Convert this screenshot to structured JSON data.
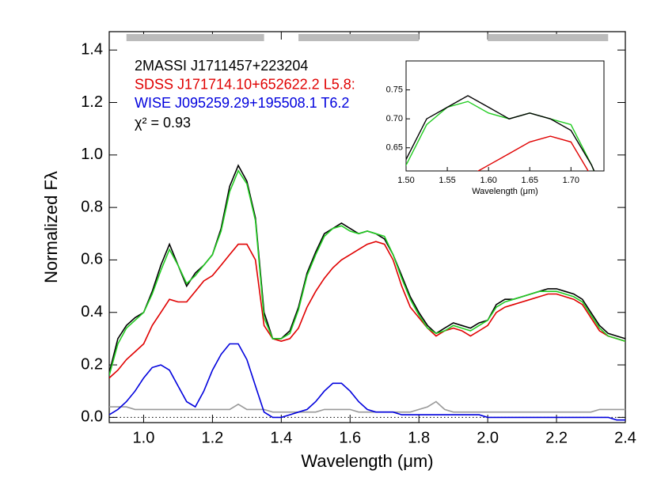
{
  "chart_data": {
    "type": "line",
    "xlabel": "Wavelength (μm)",
    "ylabel": "Normalized Fλ",
    "annotation": "χ² = 0.93",
    "xlim": [
      0.9,
      2.4
    ],
    "ylim": [
      -0.02,
      1.47
    ],
    "xticks": [
      {
        "value": 1.0,
        "label": "1.0"
      },
      {
        "value": 1.2,
        "label": "1.2"
      },
      1.4,
      1.6,
      1.8,
      {
        "value": 2.0,
        "label": "2.0"
      },
      2.2,
      2.4
    ],
    "yticks": [
      {
        "value": 0.0,
        "label": "0.0"
      },
      0.2,
      0.4,
      0.6,
      0.8,
      {
        "value": 1.0,
        "label": "1.0"
      },
      1.2,
      1.4
    ],
    "reference_line": 0,
    "bands": [
      [
        0.95,
        1.35
      ],
      [
        1.45,
        1.8
      ],
      [
        2.0,
        2.35
      ]
    ],
    "x": [
      0.9,
      0.925,
      0.95,
      0.975,
      1.0,
      1.025,
      1.05,
      1.075,
      1.1,
      1.125,
      1.15,
      1.175,
      1.2,
      1.225,
      1.25,
      1.275,
      1.3,
      1.325,
      1.35,
      1.375,
      1.4,
      1.425,
      1.45,
      1.475,
      1.5,
      1.525,
      1.55,
      1.575,
      1.6,
      1.625,
      1.65,
      1.675,
      1.7,
      1.725,
      1.75,
      1.775,
      1.8,
      1.825,
      1.85,
      1.875,
      1.9,
      1.925,
      1.95,
      1.975,
      2.0,
      2.025,
      2.05,
      2.075,
      2.1,
      2.125,
      2.15,
      2.175,
      2.2,
      2.225,
      2.25,
      2.275,
      2.3,
      2.325,
      2.35,
      2.375,
      2.4
    ],
    "series": [
      {
        "name": "2MASSI J1711457+223204",
        "color": "#000000",
        "values": [
          0.17,
          0.3,
          0.35,
          0.38,
          0.4,
          0.48,
          0.58,
          0.66,
          0.58,
          0.5,
          0.55,
          0.58,
          0.62,
          0.72,
          0.88,
          0.96,
          0.9,
          0.76,
          0.4,
          0.3,
          0.3,
          0.33,
          0.42,
          0.55,
          0.63,
          0.7,
          0.72,
          0.74,
          0.72,
          0.7,
          0.71,
          0.7,
          0.68,
          0.62,
          0.54,
          0.46,
          0.4,
          0.35,
          0.32,
          0.34,
          0.36,
          0.35,
          0.34,
          0.36,
          0.37,
          0.43,
          0.45,
          0.45,
          0.46,
          0.47,
          0.48,
          0.49,
          0.49,
          0.48,
          0.47,
          0.45,
          0.4,
          0.35,
          0.32,
          0.31,
          0.3
        ]
      },
      {
        "name": "SDSS J171714.10+652622.2 L5.8:",
        "color": "#e00000",
        "values": [
          0.15,
          0.18,
          0.22,
          0.25,
          0.28,
          0.35,
          0.4,
          0.45,
          0.44,
          0.44,
          0.48,
          0.52,
          0.54,
          0.58,
          0.62,
          0.66,
          0.66,
          0.6,
          0.35,
          0.3,
          0.29,
          0.3,
          0.34,
          0.42,
          0.48,
          0.53,
          0.57,
          0.6,
          0.62,
          0.64,
          0.66,
          0.67,
          0.66,
          0.6,
          0.5,
          0.42,
          0.38,
          0.34,
          0.31,
          0.33,
          0.34,
          0.33,
          0.31,
          0.33,
          0.35,
          0.4,
          0.42,
          0.43,
          0.44,
          0.45,
          0.46,
          0.47,
          0.47,
          0.46,
          0.45,
          0.43,
          0.38,
          0.33,
          0.31,
          0.3,
          0.29
        ]
      },
      {
        "name": "WISE J095259.29+195508.1 T6.2",
        "color": "#0000dd",
        "values": [
          0.01,
          0.03,
          0.06,
          0.1,
          0.15,
          0.19,
          0.2,
          0.18,
          0.12,
          0.06,
          0.04,
          0.1,
          0.18,
          0.24,
          0.28,
          0.28,
          0.22,
          0.12,
          0.02,
          0.0,
          0.0,
          0.01,
          0.02,
          0.03,
          0.06,
          0.1,
          0.13,
          0.13,
          0.1,
          0.06,
          0.03,
          0.02,
          0.02,
          0.02,
          0.01,
          0.01,
          0.01,
          0.01,
          0.01,
          0.01,
          0.01,
          0.01,
          0.01,
          0.01,
          0.0,
          0.0,
          0.0,
          0.0,
          0.0,
          0.0,
          0.0,
          0.0,
          0.0,
          0.0,
          0.0,
          0.0,
          0.0,
          0.0,
          0.0,
          -0.01,
          -0.01
        ]
      },
      {
        "color": "#22cc22",
        "values": [
          0.16,
          0.28,
          0.34,
          0.37,
          0.4,
          0.47,
          0.56,
          0.64,
          0.58,
          0.51,
          0.54,
          0.58,
          0.62,
          0.71,
          0.86,
          0.94,
          0.89,
          0.75,
          0.38,
          0.3,
          0.3,
          0.32,
          0.41,
          0.54,
          0.62,
          0.69,
          0.72,
          0.73,
          0.71,
          0.7,
          0.71,
          0.7,
          0.69,
          0.62,
          0.53,
          0.45,
          0.39,
          0.34,
          0.32,
          0.33,
          0.35,
          0.34,
          0.33,
          0.35,
          0.37,
          0.42,
          0.44,
          0.45,
          0.46,
          0.47,
          0.48,
          0.48,
          0.48,
          0.47,
          0.46,
          0.44,
          0.39,
          0.34,
          0.31,
          0.3,
          0.29
        ]
      },
      {
        "color": "#999999",
        "values": [
          0.04,
          0.04,
          0.04,
          0.03,
          0.03,
          0.03,
          0.03,
          0.03,
          0.03,
          0.03,
          0.03,
          0.03,
          0.03,
          0.03,
          0.03,
          0.05,
          0.03,
          0.03,
          0.03,
          0.02,
          0.02,
          0.02,
          0.02,
          0.02,
          0.02,
          0.03,
          0.03,
          0.03,
          0.03,
          0.02,
          0.02,
          0.02,
          0.02,
          0.02,
          0.02,
          0.02,
          0.03,
          0.04,
          0.06,
          0.03,
          0.02,
          0.02,
          0.02,
          0.02,
          0.02,
          0.02,
          0.02,
          0.02,
          0.02,
          0.02,
          0.02,
          0.02,
          0.02,
          0.02,
          0.02,
          0.02,
          0.02,
          0.03,
          0.03,
          0.03,
          0.03
        ]
      }
    ],
    "inset": {
      "xlabel": "Wavelength (μm)",
      "xlim": [
        1.5,
        1.74
      ],
      "ylim": [
        0.61,
        0.8
      ],
      "xticks": [
        {
          "value": 1.5,
          "label": "1.50"
        },
        1.55,
        {
          "value": 1.6,
          "label": "1.60"
        },
        1.65,
        {
          "value": 1.7,
          "label": "1.70"
        }
      ],
      "yticks": [
        0.65,
        {
          "value": 0.7,
          "label": "0.70"
        },
        0.75
      ]
    }
  }
}
